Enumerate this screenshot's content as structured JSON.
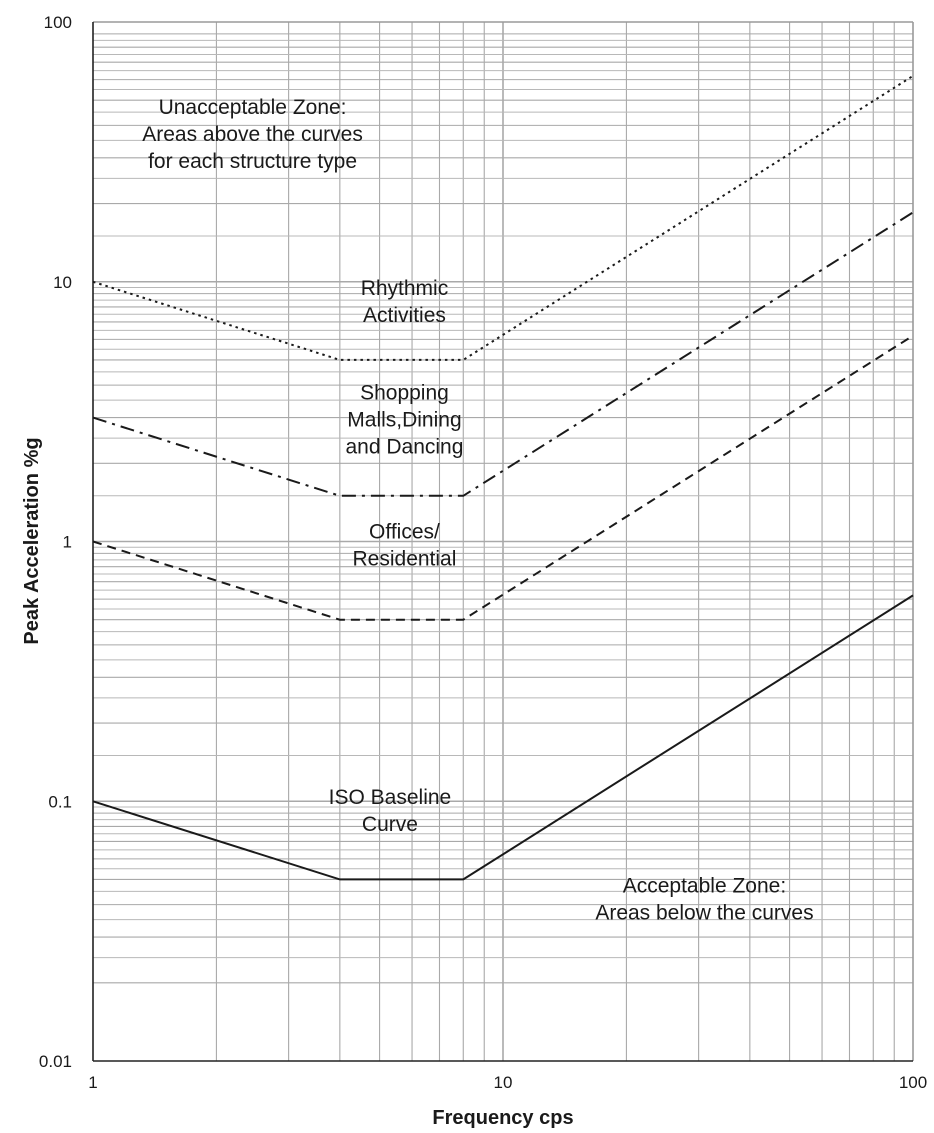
{
  "chart_data": {
    "type": "line",
    "xlabel": "Frequency cps",
    "ylabel": "Peak Acceleration %g",
    "xscale": "log",
    "yscale": "log",
    "xlim": [
      1,
      100
    ],
    "ylim": [
      0.01,
      100
    ],
    "x_tick_labels": [
      "1",
      "10",
      "100"
    ],
    "y_tick_labels": [
      "0.01",
      "0.1",
      "1",
      "10",
      "100"
    ],
    "grid": true,
    "series": [
      {
        "name": "Rhythmic Activities",
        "style": "dotted",
        "color": "#1a1a1a",
        "x": [
          1,
          4,
          8,
          100
        ],
        "y": [
          10,
          5,
          5,
          62
        ]
      },
      {
        "name": "Shopping Malls,Dining and Dancing",
        "style": "dash-dot",
        "color": "#1a1a1a",
        "x": [
          1,
          4,
          8,
          100
        ],
        "y": [
          3,
          1.5,
          1.5,
          18.5
        ]
      },
      {
        "name": "Offices/ Residential",
        "style": "dashed",
        "color": "#1a1a1a",
        "x": [
          1,
          4,
          8,
          100
        ],
        "y": [
          1,
          0.5,
          0.5,
          6.2
        ]
      },
      {
        "name": "ISO Baseline Curve",
        "style": "solid",
        "color": "#1a1a1a",
        "x": [
          1,
          4,
          8,
          100
        ],
        "y": [
          0.1,
          0.05,
          0.05,
          0.62
        ]
      }
    ],
    "annotations": [
      {
        "lines": [
          "Unacceptable Zone:",
          "Areas above the curves",
          "for each structure type"
        ],
        "x": 2.45,
        "y": 37
      },
      {
        "lines": [
          "Rhythmic",
          "Activities"
        ],
        "x": 5.75,
        "y": 8.4
      },
      {
        "lines": [
          "Shopping",
          "Malls,Dining",
          "and Dancing"
        ],
        "x": 5.75,
        "y": 2.95
      },
      {
        "lines": [
          "Offices/",
          "Residential"
        ],
        "x": 5.75,
        "y": 0.97
      },
      {
        "lines": [
          "ISO Baseline",
          "Curve"
        ],
        "x": 5.3,
        "y": 0.092
      },
      {
        "lines": [
          "Acceptable Zone:",
          "Areas below the curves"
        ],
        "x": 31,
        "y": 0.042
      }
    ]
  }
}
